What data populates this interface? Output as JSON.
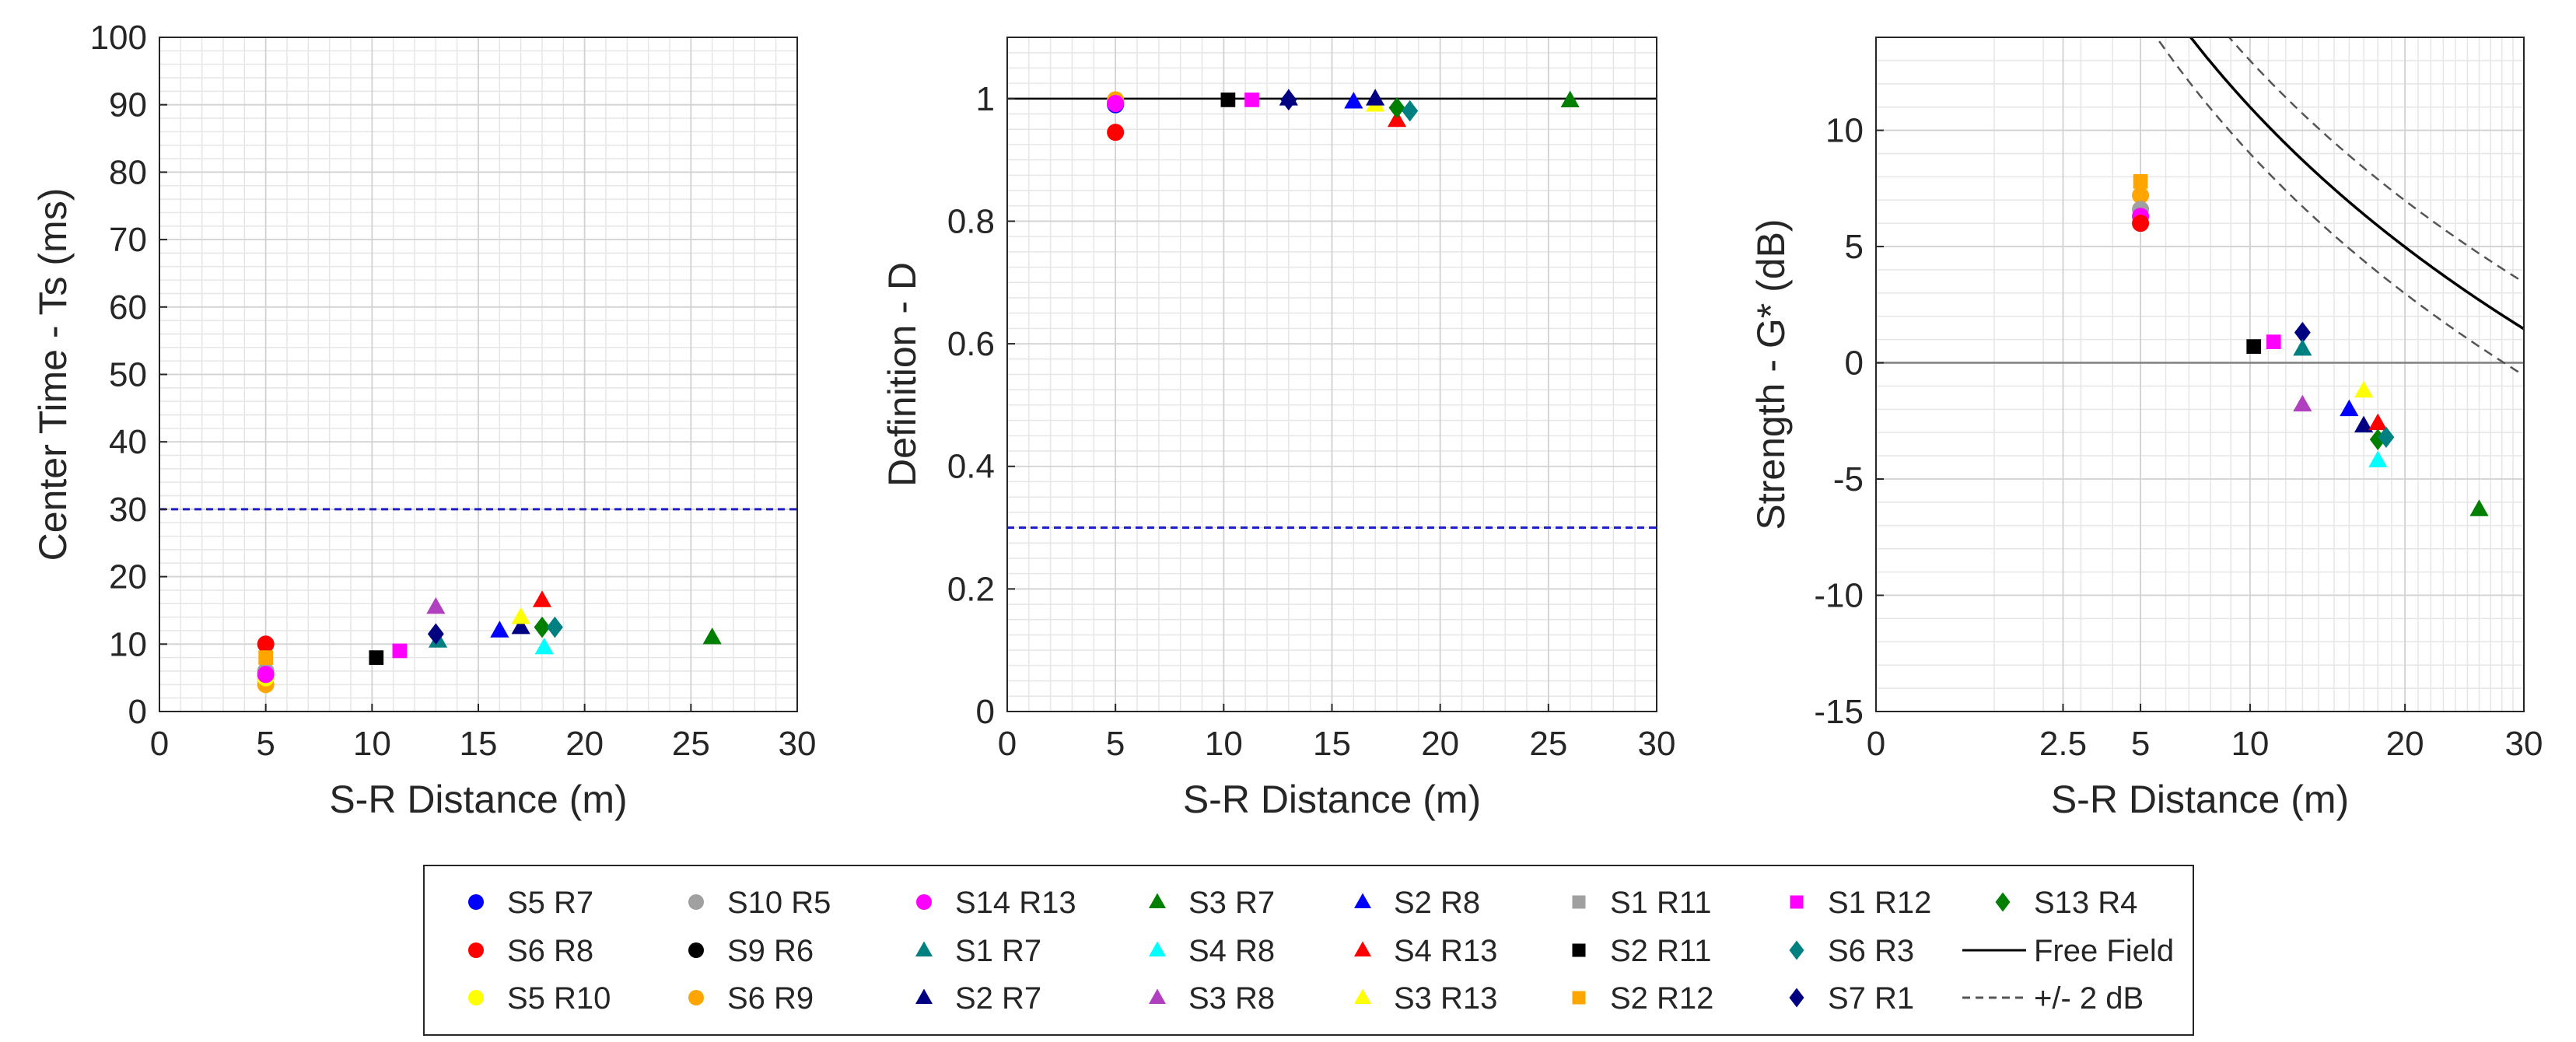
{
  "chart_data": [
    {
      "type": "scatter",
      "xlabel": "S-R Distance (m)",
      "ylabel": "Center Time - Ts (ms)",
      "xlim": [
        0,
        30
      ],
      "ylim": [
        0,
        100
      ],
      "xticks": [
        0,
        5,
        10,
        15,
        20,
        25,
        30
      ],
      "xtick_labels": [
        "0",
        "5",
        "10",
        "15",
        "20",
        "25",
        "30"
      ],
      "yticks": [
        0,
        10,
        20,
        30,
        40,
        50,
        60,
        70,
        80,
        90,
        100
      ],
      "ytick_labels": [
        "0",
        "10",
        "20",
        "30",
        "40",
        "50",
        "60",
        "70",
        "80",
        "90",
        "100"
      ],
      "x_scale": "linear",
      "grid": true,
      "reference_lines": [
        {
          "kind": "hline",
          "y": 30,
          "style": "dashed",
          "color": "#1f1fc8"
        }
      ],
      "points": [
        {
          "series": "S5 R7",
          "x": 5,
          "y": 5
        },
        {
          "series": "S6 R8",
          "x": 5,
          "y": 10
        },
        {
          "series": "S10 R5",
          "x": 5,
          "y": 6
        },
        {
          "series": "S6 R9",
          "x": 5,
          "y": 4
        },
        {
          "series": "S5 R10",
          "x": 5,
          "y": 5
        },
        {
          "series": "S14 R13",
          "x": 5,
          "y": 5.5
        },
        {
          "series": "S2 R12",
          "x": 5,
          "y": 8
        },
        {
          "series": "S2 R11",
          "x": 10.2,
          "y": 8
        },
        {
          "series": "S1 R12",
          "x": 11.3,
          "y": 9
        },
        {
          "series": "S3 R8",
          "x": 13,
          "y": 15.5
        },
        {
          "series": "S1 R7",
          "x": 13.1,
          "y": 10.5
        },
        {
          "series": "S7 R1",
          "x": 13,
          "y": 11.5
        },
        {
          "series": "S2 R8",
          "x": 16,
          "y": 12
        },
        {
          "series": "S2 R7",
          "x": 17,
          "y": 12.5
        },
        {
          "series": "S3 R13",
          "x": 17,
          "y": 14
        },
        {
          "series": "S4 R13",
          "x": 18,
          "y": 16.5
        },
        {
          "series": "S4 R8",
          "x": 18.1,
          "y": 9.5
        },
        {
          "series": "S13 R4",
          "x": 18,
          "y": 12.5
        },
        {
          "series": "S6 R3",
          "x": 18.6,
          "y": 12.5
        },
        {
          "series": "S3 R7",
          "x": 26,
          "y": 11
        }
      ]
    },
    {
      "type": "scatter",
      "xlabel": "S-R Distance (m)",
      "ylabel": "Definition - D",
      "xlim": [
        0,
        30
      ],
      "ylim": [
        0,
        1.1
      ],
      "xticks": [
        0,
        5,
        10,
        15,
        20,
        25,
        30
      ],
      "xtick_labels": [
        "0",
        "5",
        "10",
        "15",
        "20",
        "25",
        "30"
      ],
      "yticks": [
        0,
        0.2,
        0.4,
        0.6,
        0.8,
        1
      ],
      "ytick_labels": [
        "0",
        "0.2",
        "0.4",
        "0.6",
        "0.8",
        "1"
      ],
      "x_scale": "linear",
      "grid": true,
      "reference_lines": [
        {
          "kind": "hline",
          "y": 1,
          "style": "solid",
          "color": "#000000"
        },
        {
          "kind": "hline",
          "y": 0.3,
          "style": "dashed",
          "color": "#1f1fc8"
        }
      ],
      "points": [
        {
          "series": "S5 R7",
          "x": 5,
          "y": 0.99
        },
        {
          "series": "S10 R5",
          "x": 5,
          "y": 0.995
        },
        {
          "series": "S6 R9",
          "x": 5,
          "y": 0.998
        },
        {
          "series": "S14 R13",
          "x": 5,
          "y": 0.992
        },
        {
          "series": "S6 R8",
          "x": 5,
          "y": 0.945
        },
        {
          "series": "S2 R11",
          "x": 10.2,
          "y": 0.998
        },
        {
          "series": "S1 R12",
          "x": 11.3,
          "y": 0.998
        },
        {
          "series": "S7 R1",
          "x": 13,
          "y": 0.998
        },
        {
          "series": "S2 R7",
          "x": 13,
          "y": 1.0
        },
        {
          "series": "S2 R8",
          "x": 16,
          "y": 0.995
        },
        {
          "series": "S3 R13",
          "x": 17,
          "y": 0.99
        },
        {
          "series": "S2 R7",
          "x": 17,
          "y": 1.0
        },
        {
          "series": "S4 R13",
          "x": 18,
          "y": 0.965
        },
        {
          "series": "S13 R4",
          "x": 18,
          "y": 0.985
        },
        {
          "series": "S6 R3",
          "x": 18.6,
          "y": 0.98
        },
        {
          "series": "S3 R7",
          "x": 26,
          "y": 0.997
        }
      ]
    },
    {
      "type": "scatter",
      "xlabel": "S-R Distance (m)",
      "ylabel": "Strength - G* (dB)",
      "xlim": [
        0,
        30
      ],
      "ylim": [
        -15,
        14
      ],
      "xticks": [
        0,
        2.5,
        5,
        10,
        20,
        30
      ],
      "xtick_labels": [
        "0",
        "2.5",
        "5",
        "10",
        "20",
        "30"
      ],
      "yticks": [
        -15,
        -10,
        -5,
        0,
        5,
        10
      ],
      "ytick_labels": [
        "-15",
        "-10",
        "-5",
        "0",
        "5",
        "10"
      ],
      "x_scale": "sqrt",
      "grid": true,
      "reference_lines": [
        {
          "kind": "hline",
          "y": 0,
          "style": "solid",
          "color": "#808080"
        }
      ],
      "curves": [
        {
          "series": "Free Field",
          "formula": "31 - 20*log10(r)",
          "style": "solid"
        },
        {
          "series": "+/- 2 dB",
          "formula": "33 - 20*log10(r)",
          "style": "dashed"
        },
        {
          "series": "+/- 2 dB",
          "formula": "29 - 20*log10(r)",
          "style": "dashed"
        }
      ],
      "points": [
        {
          "series": "S2 R12",
          "x": 5,
          "y": 7.8
        },
        {
          "series": "S6 R9",
          "x": 5,
          "y": 7.2
        },
        {
          "series": "S10 R5",
          "x": 5,
          "y": 6.6
        },
        {
          "series": "S14 R13",
          "x": 5,
          "y": 6.3
        },
        {
          "series": "S6 R8",
          "x": 5,
          "y": 6.0
        },
        {
          "series": "S2 R11",
          "x": 10.2,
          "y": 0.7
        },
        {
          "series": "S1 R12",
          "x": 11.3,
          "y": 0.9
        },
        {
          "series": "S7 R1",
          "x": 13,
          "y": 1.3
        },
        {
          "series": "S1 R7",
          "x": 13,
          "y": 0.6
        },
        {
          "series": "S3 R8",
          "x": 13,
          "y": -1.8
        },
        {
          "series": "S2 R8",
          "x": 16,
          "y": -2.0
        },
        {
          "series": "S2 R7",
          "x": 17,
          "y": -2.7
        },
        {
          "series": "S3 R13",
          "x": 17,
          "y": -1.2
        },
        {
          "series": "S4 R13",
          "x": 18,
          "y": -2.6
        },
        {
          "series": "S4 R8",
          "x": 18,
          "y": -4.2
        },
        {
          "series": "S13 R4",
          "x": 18,
          "y": -3.3
        },
        {
          "series": "S6 R3",
          "x": 18.6,
          "y": -3.2
        },
        {
          "series": "S3 R7",
          "x": 26,
          "y": -6.3
        }
      ]
    }
  ],
  "legend": {
    "placement": "bottom",
    "items": [
      {
        "label": "S5 R7",
        "marker": "circle",
        "color": "#0000ff"
      },
      {
        "label": "S10 R5",
        "marker": "circle",
        "color": "#a0a0a0"
      },
      {
        "label": "S14 R13",
        "marker": "circle",
        "color": "#ff00ff"
      },
      {
        "label": "S3 R7",
        "marker": "triangle",
        "color": "#007f00"
      },
      {
        "label": "S2 R8",
        "marker": "triangle",
        "color": "#0000ff"
      },
      {
        "label": "S1 R11",
        "marker": "square",
        "color": "#a0a0a0"
      },
      {
        "label": "S1 R12",
        "marker": "square",
        "color": "#ff00ff"
      },
      {
        "label": "S13 R4",
        "marker": "diamond",
        "color": "#007f00"
      },
      {
        "label": "S6 R8",
        "marker": "circle",
        "color": "#ff0000"
      },
      {
        "label": "S9 R6",
        "marker": "circle",
        "color": "#000000"
      },
      {
        "label": "S1 R7",
        "marker": "triangle",
        "color": "#008080"
      },
      {
        "label": "S4 R8",
        "marker": "triangle",
        "color": "#00ffff"
      },
      {
        "label": "S4 R13",
        "marker": "triangle",
        "color": "#ff0000"
      },
      {
        "label": "S2 R11",
        "marker": "square",
        "color": "#000000"
      },
      {
        "label": "S6 R3",
        "marker": "diamond",
        "color": "#008080"
      },
      {
        "label": "Free Field",
        "marker": "line-solid",
        "color": "#000000"
      },
      {
        "label": "S5 R10",
        "marker": "circle",
        "color": "#ffff00"
      },
      {
        "label": "S6 R9",
        "marker": "circle",
        "color": "#ffa500"
      },
      {
        "label": "S2 R7",
        "marker": "triangle",
        "color": "#000080"
      },
      {
        "label": "S3 R8",
        "marker": "triangle",
        "color": "#b040c0"
      },
      {
        "label": "S3 R13",
        "marker": "triangle",
        "color": "#ffff00"
      },
      {
        "label": "S2 R12",
        "marker": "square",
        "color": "#ffa500"
      },
      {
        "label": "S7 R1",
        "marker": "diamond",
        "color": "#000080"
      },
      {
        "label": "+/- 2 dB",
        "marker": "line-dashed",
        "color": "#000000"
      }
    ]
  }
}
